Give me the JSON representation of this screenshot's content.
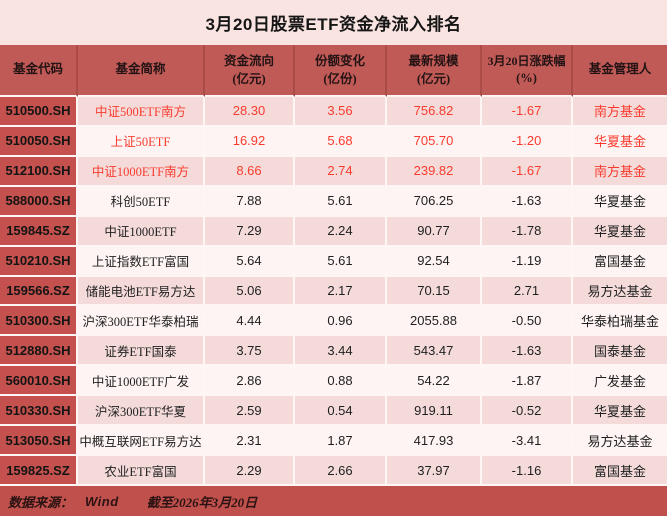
{
  "title": "3月20日股票ETF资金净流入排名",
  "colors": {
    "title_bg": "#f9e4e2",
    "header_bg": "#bf5a56",
    "code_col_bg": "#c4514d",
    "footer_bg": "#c0504c",
    "row_pink": "#f4dbda",
    "row_white": "#fdf4f3",
    "highlight_text": "#f93b2f",
    "dark_text": "#1f1f1f"
  },
  "chart_data": {
    "type": "table",
    "title": "3月20日股票ETF资金净流入排名",
    "columns": [
      {
        "title": "基金代码",
        "sub": ""
      },
      {
        "title": "基金简称",
        "sub": ""
      },
      {
        "title": "资金流向",
        "sub": "(亿元)"
      },
      {
        "title": "份额变化",
        "sub": "(亿份)"
      },
      {
        "title": "最新规模",
        "sub": "(亿元)"
      },
      {
        "title": "3月20日涨跌幅",
        "sub": "(%)"
      },
      {
        "title": "基金管理人",
        "sub": ""
      }
    ],
    "rows": [
      {
        "code": "510500.SH",
        "name": "中证500ETF南方",
        "flow": "28.30",
        "share": "3.56",
        "scale": "756.82",
        "change": "-1.67",
        "manager": "南方基金",
        "highlight": true
      },
      {
        "code": "510050.SH",
        "name": "上证50ETF",
        "flow": "16.92",
        "share": "5.68",
        "scale": "705.70",
        "change": "-1.20",
        "manager": "华夏基金",
        "highlight": true
      },
      {
        "code": "512100.SH",
        "name": "中证1000ETF南方",
        "flow": "8.66",
        "share": "2.74",
        "scale": "239.82",
        "change": "-1.67",
        "manager": "南方基金",
        "highlight": true
      },
      {
        "code": "588000.SH",
        "name": "科创50ETF",
        "flow": "7.88",
        "share": "5.61",
        "scale": "706.25",
        "change": "-1.63",
        "manager": "华夏基金",
        "highlight": false
      },
      {
        "code": "159845.SZ",
        "name": "中证1000ETF",
        "flow": "7.29",
        "share": "2.24",
        "scale": "90.77",
        "change": "-1.78",
        "manager": "华夏基金",
        "highlight": false
      },
      {
        "code": "510210.SH",
        "name": "上证指数ETF富国",
        "flow": "5.64",
        "share": "5.61",
        "scale": "92.54",
        "change": "-1.19",
        "manager": "富国基金",
        "highlight": false
      },
      {
        "code": "159566.SZ",
        "name": "储能电池ETF易方达",
        "flow": "5.06",
        "share": "2.17",
        "scale": "70.15",
        "change": "2.71",
        "manager": "易方达基金",
        "highlight": false
      },
      {
        "code": "510300.SH",
        "name": "沪深300ETF华泰柏瑞",
        "flow": "4.44",
        "share": "0.96",
        "scale": "2055.88",
        "change": "-0.50",
        "manager": "华泰柏瑞基金",
        "highlight": false
      },
      {
        "code": "512880.SH",
        "name": "证券ETF国泰",
        "flow": "3.75",
        "share": "3.44",
        "scale": "543.47",
        "change": "-1.63",
        "manager": "国泰基金",
        "highlight": false
      },
      {
        "code": "560010.SH",
        "name": "中证1000ETF广发",
        "flow": "2.86",
        "share": "0.88",
        "scale": "54.22",
        "change": "-1.87",
        "manager": "广发基金",
        "highlight": false
      },
      {
        "code": "510330.SH",
        "name": "沪深300ETF华夏",
        "flow": "2.59",
        "share": "0.54",
        "scale": "919.11",
        "change": "-0.52",
        "manager": "华夏基金",
        "highlight": false
      },
      {
        "code": "513050.SH",
        "name": "中概互联网ETF易方达",
        "flow": "2.31",
        "share": "1.87",
        "scale": "417.93",
        "change": "-3.41",
        "manager": "易方达基金",
        "highlight": false
      },
      {
        "code": "159825.SZ",
        "name": "农业ETF富国",
        "flow": "2.29",
        "share": "2.66",
        "scale": "37.97",
        "change": "-1.16",
        "manager": "富国基金",
        "highlight": false
      }
    ]
  },
  "footer": {
    "source_label": "数据来源：",
    "source_value": "Wind",
    "as_of": "截至2026年3月20日"
  }
}
